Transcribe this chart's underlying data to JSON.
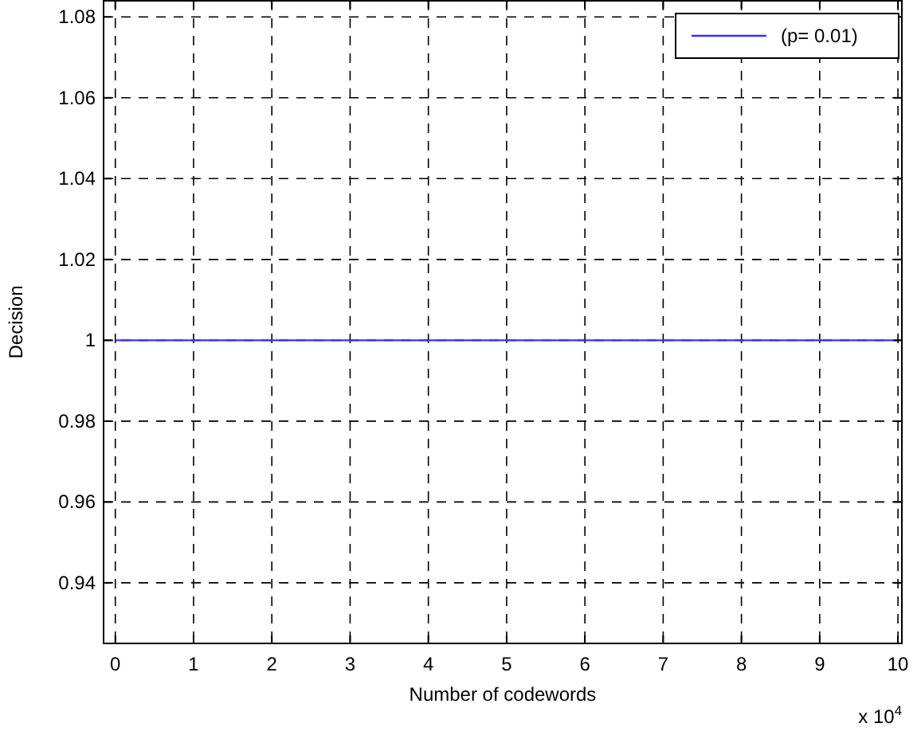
{
  "chart_data": {
    "type": "line",
    "xlabel": "Number of codewords",
    "ylabel": "Decision",
    "x": [
      0,
      10
    ],
    "series": [
      {
        "name": "(p= 0.01)",
        "color": "#3333ff",
        "values": [
          1,
          1
        ]
      }
    ],
    "xlim": [
      -0.15,
      10.05
    ],
    "ylim": [
      0.925,
      1.084
    ],
    "xticks": [
      0,
      1,
      2,
      3,
      4,
      5,
      6,
      7,
      8,
      9,
      10
    ],
    "yticks": [
      0.94,
      0.96,
      0.98,
      1,
      1.02,
      1.04,
      1.06,
      1.08
    ],
    "annotations": [
      "x 10$^{4}$"
    ],
    "grid": true,
    "legend": "top right",
    "marker": "none",
    "line_style": "solid"
  }
}
